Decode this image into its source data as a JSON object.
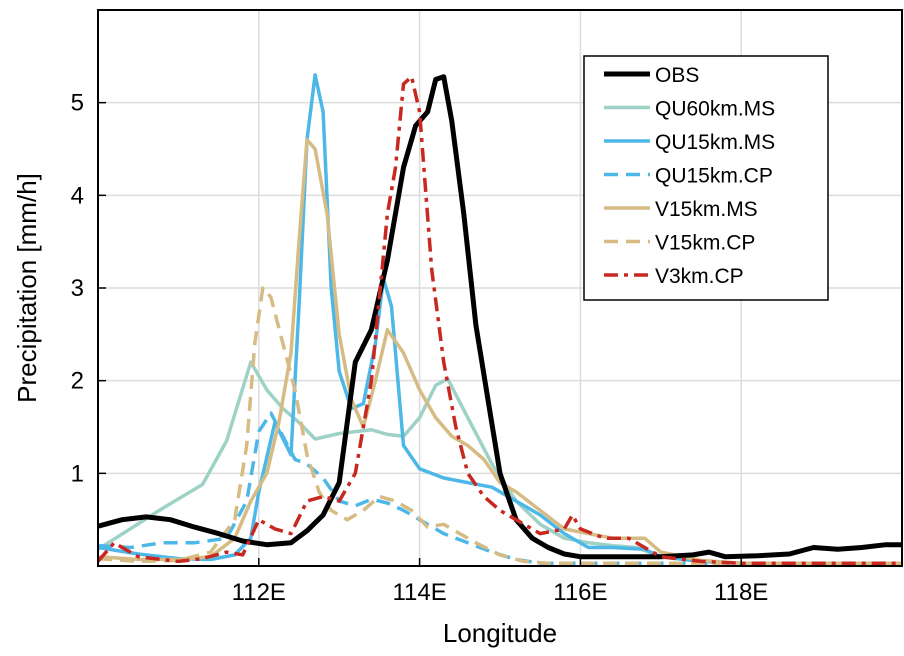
{
  "chart_data": {
    "type": "line",
    "title": "",
    "xlabel": "Longitude",
    "ylabel": "Precipitation [mm/h]",
    "xlim": [
      110,
      120
    ],
    "ylim": [
      0,
      6
    ],
    "x_ticks": [
      112,
      114,
      116,
      118
    ],
    "x_tick_labels": [
      "112E",
      "114E",
      "116E",
      "118E"
    ],
    "y_ticks": [
      1,
      2,
      3,
      4,
      5
    ],
    "y_tick_labels": [
      "1",
      "2",
      "3",
      "4",
      "5"
    ],
    "grid": true,
    "legend_position": "top-right",
    "series": [
      {
        "name": "OBS",
        "color": "#000000",
        "dash": "solid",
        "width": 5,
        "points": [
          [
            110,
            0.43
          ],
          [
            110.3,
            0.5
          ],
          [
            110.6,
            0.53
          ],
          [
            110.9,
            0.5
          ],
          [
            111.2,
            0.42
          ],
          [
            111.5,
            0.35
          ],
          [
            111.8,
            0.27
          ],
          [
            112.1,
            0.23
          ],
          [
            112.4,
            0.25
          ],
          [
            112.6,
            0.38
          ],
          [
            112.8,
            0.55
          ],
          [
            113.0,
            0.9
          ],
          [
            113.2,
            2.2
          ],
          [
            113.4,
            2.55
          ],
          [
            113.6,
            3.3
          ],
          [
            113.8,
            4.3
          ],
          [
            113.95,
            4.75
          ],
          [
            114.1,
            4.9
          ],
          [
            114.2,
            5.25
          ],
          [
            114.3,
            5.28
          ],
          [
            114.4,
            4.8
          ],
          [
            114.55,
            3.8
          ],
          [
            114.7,
            2.6
          ],
          [
            114.85,
            1.8
          ],
          [
            115.0,
            1.0
          ],
          [
            115.2,
            0.5
          ],
          [
            115.4,
            0.3
          ],
          [
            115.6,
            0.2
          ],
          [
            115.8,
            0.13
          ],
          [
            116.0,
            0.1
          ],
          [
            116.5,
            0.1
          ],
          [
            117.0,
            0.1
          ],
          [
            117.4,
            0.12
          ],
          [
            117.6,
            0.15
          ],
          [
            117.8,
            0.1
          ],
          [
            118.2,
            0.11
          ],
          [
            118.6,
            0.13
          ],
          [
            118.9,
            0.2
          ],
          [
            119.2,
            0.18
          ],
          [
            119.5,
            0.2
          ],
          [
            119.8,
            0.23
          ],
          [
            120,
            0.23
          ]
        ]
      },
      {
        "name": "QU60km.MS",
        "color": "#9ed2c6",
        "dash": "solid",
        "width": 3.5,
        "points": [
          [
            110,
            0.18
          ],
          [
            110.4,
            0.4
          ],
          [
            110.8,
            0.62
          ],
          [
            111.3,
            0.88
          ],
          [
            111.6,
            1.35
          ],
          [
            111.9,
            2.2
          ],
          [
            112.1,
            1.9
          ],
          [
            112.3,
            1.7
          ],
          [
            112.5,
            1.55
          ],
          [
            112.7,
            1.37
          ],
          [
            113.0,
            1.43
          ],
          [
            113.2,
            1.45
          ],
          [
            113.4,
            1.47
          ],
          [
            113.6,
            1.42
          ],
          [
            113.8,
            1.4
          ],
          [
            114.0,
            1.6
          ],
          [
            114.2,
            1.95
          ],
          [
            114.35,
            2.02
          ],
          [
            114.6,
            1.6
          ],
          [
            114.9,
            1.1
          ],
          [
            115.2,
            0.7
          ],
          [
            115.5,
            0.45
          ],
          [
            115.8,
            0.3
          ],
          [
            116.1,
            0.25
          ],
          [
            116.4,
            0.22
          ],
          [
            116.7,
            0.2
          ],
          [
            117.0,
            0.1
          ],
          [
            117.5,
            0.05
          ],
          [
            118.0,
            0.03
          ],
          [
            119.0,
            0.03
          ],
          [
            120,
            0.03
          ]
        ]
      },
      {
        "name": "QU15km.MS",
        "color": "#4db8e8",
        "dash": "solid",
        "width": 3.5,
        "points": [
          [
            110,
            0.2
          ],
          [
            110.5,
            0.13
          ],
          [
            111.0,
            0.08
          ],
          [
            111.4,
            0.07
          ],
          [
            111.7,
            0.12
          ],
          [
            111.9,
            0.3
          ],
          [
            112.0,
            0.8
          ],
          [
            112.2,
            1.55
          ],
          [
            112.4,
            1.2
          ],
          [
            112.5,
            2.8
          ],
          [
            112.6,
            4.6
          ],
          [
            112.7,
            5.3
          ],
          [
            112.8,
            4.9
          ],
          [
            112.9,
            3.0
          ],
          [
            113.0,
            2.1
          ],
          [
            113.15,
            1.7
          ],
          [
            113.3,
            1.75
          ],
          [
            113.45,
            2.4
          ],
          [
            113.55,
            3.1
          ],
          [
            113.65,
            2.8
          ],
          [
            113.8,
            1.3
          ],
          [
            114.0,
            1.05
          ],
          [
            114.3,
            0.95
          ],
          [
            114.6,
            0.9
          ],
          [
            114.9,
            0.85
          ],
          [
            115.2,
            0.7
          ],
          [
            115.5,
            0.55
          ],
          [
            115.8,
            0.35
          ],
          [
            116.1,
            0.2
          ],
          [
            116.4,
            0.2
          ],
          [
            116.8,
            0.18
          ],
          [
            117.0,
            0.1
          ],
          [
            117.5,
            0.05
          ],
          [
            118.0,
            0.03
          ],
          [
            119.0,
            0.03
          ],
          [
            120,
            0.03
          ]
        ]
      },
      {
        "name": "QU15km.CP",
        "color": "#4db8e8",
        "dash": "dash",
        "width": 3.5,
        "points": [
          [
            110,
            0.22
          ],
          [
            110.4,
            0.2
          ],
          [
            110.8,
            0.25
          ],
          [
            111.2,
            0.25
          ],
          [
            111.6,
            0.3
          ],
          [
            111.85,
            0.7
          ],
          [
            112.0,
            1.45
          ],
          [
            112.15,
            1.65
          ],
          [
            112.3,
            1.4
          ],
          [
            112.45,
            1.15
          ],
          [
            112.6,
            1.1
          ],
          [
            112.8,
            0.95
          ],
          [
            113.0,
            0.7
          ],
          [
            113.2,
            0.65
          ],
          [
            113.4,
            0.72
          ],
          [
            113.6,
            0.68
          ],
          [
            113.8,
            0.6
          ],
          [
            114.0,
            0.5
          ],
          [
            114.3,
            0.35
          ],
          [
            114.6,
            0.25
          ],
          [
            114.9,
            0.15
          ],
          [
            115.2,
            0.07
          ],
          [
            115.5,
            0.03
          ],
          [
            116.0,
            0.03
          ],
          [
            117.0,
            0.03
          ],
          [
            120,
            0.03
          ]
        ]
      },
      {
        "name": "V15km.MS",
        "color": "#d6bb84",
        "dash": "solid",
        "width": 3.5,
        "points": [
          [
            110,
            0.1
          ],
          [
            110.5,
            0.07
          ],
          [
            111.0,
            0.07
          ],
          [
            111.4,
            0.1
          ],
          [
            111.7,
            0.3
          ],
          [
            111.9,
            0.7
          ],
          [
            112.1,
            1.0
          ],
          [
            112.25,
            1.55
          ],
          [
            112.4,
            2.3
          ],
          [
            112.5,
            3.5
          ],
          [
            112.6,
            4.6
          ],
          [
            112.7,
            4.5
          ],
          [
            112.85,
            3.8
          ],
          [
            113.0,
            2.5
          ],
          [
            113.15,
            1.8
          ],
          [
            113.3,
            1.5
          ],
          [
            113.45,
            2.0
          ],
          [
            113.6,
            2.55
          ],
          [
            113.8,
            2.3
          ],
          [
            114.0,
            1.9
          ],
          [
            114.2,
            1.6
          ],
          [
            114.4,
            1.4
          ],
          [
            114.6,
            1.3
          ],
          [
            114.8,
            1.15
          ],
          [
            115.0,
            0.9
          ],
          [
            115.2,
            0.8
          ],
          [
            115.5,
            0.6
          ],
          [
            115.8,
            0.4
          ],
          [
            116.1,
            0.35
          ],
          [
            116.4,
            0.3
          ],
          [
            116.8,
            0.3
          ],
          [
            117.0,
            0.15
          ],
          [
            117.5,
            0.06
          ],
          [
            118.0,
            0.03
          ],
          [
            119.0,
            0.03
          ],
          [
            120,
            0.03
          ]
        ]
      },
      {
        "name": "V15km.CP",
        "color": "#d6bb84",
        "dash": "dash",
        "width": 3.5,
        "points": [
          [
            110,
            0.08
          ],
          [
            110.5,
            0.05
          ],
          [
            111.0,
            0.06
          ],
          [
            111.4,
            0.15
          ],
          [
            111.7,
            0.5
          ],
          [
            111.85,
            1.3
          ],
          [
            111.95,
            2.4
          ],
          [
            112.05,
            3.0
          ],
          [
            112.15,
            2.9
          ],
          [
            112.3,
            2.4
          ],
          [
            112.45,
            1.9
          ],
          [
            112.6,
            1.2
          ],
          [
            112.75,
            0.8
          ],
          [
            112.9,
            0.6
          ],
          [
            113.1,
            0.5
          ],
          [
            113.3,
            0.6
          ],
          [
            113.5,
            0.75
          ],
          [
            113.7,
            0.7
          ],
          [
            113.9,
            0.6
          ],
          [
            114.1,
            0.42
          ],
          [
            114.3,
            0.45
          ],
          [
            114.5,
            0.35
          ],
          [
            114.7,
            0.25
          ],
          [
            115.0,
            0.12
          ],
          [
            115.3,
            0.05
          ],
          [
            115.6,
            0.03
          ],
          [
            116.0,
            0.03
          ],
          [
            117.0,
            0.03
          ],
          [
            120,
            0.03
          ]
        ]
      },
      {
        "name": "V3km.CP",
        "color": "#c8281f",
        "dash": "dash-dot",
        "width": 3.5,
        "points": [
          [
            110,
            0.05
          ],
          [
            110.2,
            0.25
          ],
          [
            110.5,
            0.1
          ],
          [
            111.0,
            0.05
          ],
          [
            111.3,
            0.08
          ],
          [
            111.6,
            0.15
          ],
          [
            111.8,
            0.12
          ],
          [
            112.0,
            0.5
          ],
          [
            112.2,
            0.4
          ],
          [
            112.4,
            0.35
          ],
          [
            112.6,
            0.7
          ],
          [
            112.8,
            0.75
          ],
          [
            113.0,
            0.7
          ],
          [
            113.2,
            1.0
          ],
          [
            113.4,
            2.0
          ],
          [
            113.6,
            3.8
          ],
          [
            113.7,
            4.3
          ],
          [
            113.8,
            5.2
          ],
          [
            113.9,
            5.28
          ],
          [
            114.0,
            4.9
          ],
          [
            114.15,
            3.2
          ],
          [
            114.3,
            2.2
          ],
          [
            114.45,
            1.5
          ],
          [
            114.6,
            1.0
          ],
          [
            114.8,
            0.75
          ],
          [
            115.0,
            0.6
          ],
          [
            115.2,
            0.5
          ],
          [
            115.5,
            0.35
          ],
          [
            115.8,
            0.4
          ],
          [
            115.9,
            0.55
          ],
          [
            116.0,
            0.4
          ],
          [
            116.3,
            0.3
          ],
          [
            116.6,
            0.3
          ],
          [
            116.8,
            0.2
          ],
          [
            117.0,
            0.1
          ],
          [
            117.5,
            0.05
          ],
          [
            118.0,
            0.03
          ],
          [
            119.0,
            0.03
          ],
          [
            120,
            0.03
          ]
        ]
      }
    ]
  }
}
